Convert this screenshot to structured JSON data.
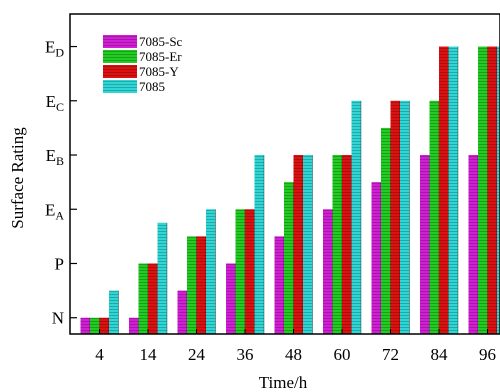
{
  "chart_data": {
    "type": "bar",
    "xlabel": "Time/h",
    "ylabel": "Surface Rating",
    "categories": [
      "4",
      "14",
      "24",
      "36",
      "48",
      "60",
      "72",
      "84",
      "96"
    ],
    "y_levels": [
      {
        "main": "N",
        "sub": ""
      },
      {
        "main": "P",
        "sub": ""
      },
      {
        "main": "E",
        "sub": "A"
      },
      {
        "main": "E",
        "sub": "B"
      },
      {
        "main": "E",
        "sub": "C"
      },
      {
        "main": "E",
        "sub": "D"
      }
    ],
    "ylim": [
      -0.3,
      5.6
    ],
    "legend_position": "top-left",
    "series": [
      {
        "name": "7085-Sc",
        "color": "#d21fd6",
        "values": [
          0,
          0,
          0.5,
          1,
          1.5,
          2,
          2.5,
          3,
          3
        ]
      },
      {
        "name": "7085-Er",
        "color": "#22cc22",
        "values": [
          0,
          1,
          1.5,
          2,
          2.5,
          3,
          3.5,
          4,
          5
        ]
      },
      {
        "name": "7085-Y",
        "color": "#dd1111",
        "values": [
          0,
          1,
          1.5,
          2,
          3,
          3,
          4,
          5,
          5
        ]
      },
      {
        "name": "7085",
        "color": "#2fd6d6",
        "values": [
          0.5,
          1.75,
          2,
          3,
          3,
          4,
          4,
          5,
          5
        ]
      }
    ]
  }
}
